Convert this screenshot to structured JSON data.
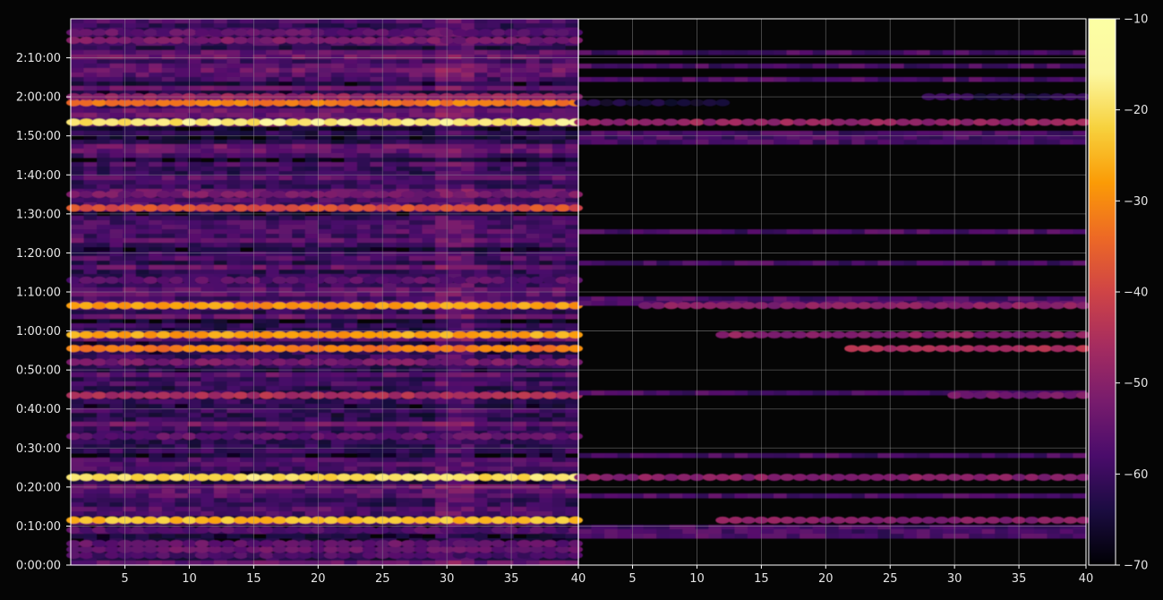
{
  "chart_data": {
    "type": "heatmap",
    "title": "",
    "xlabel": "",
    "ylabel": "",
    "grid": true,
    "colormap": "inferno",
    "background": "#050505",
    "panels": [
      {
        "name": "",
        "xlim": [
          1,
          40
        ],
        "x_ticks": [
          5,
          10,
          15,
          20,
          25,
          30,
          35,
          40
        ],
        "strong_rows": [
          {
            "time": "0:02:30",
            "value": -58,
            "x_from": 1,
            "x_to": 40
          },
          {
            "time": "0:04:00",
            "value": -54,
            "x_from": 1,
            "x_to": 40
          },
          {
            "time": "0:05:30",
            "value": -55,
            "x_from": 1,
            "x_to": 40
          },
          {
            "time": "0:09:00",
            "value": -57,
            "x_from": 1,
            "x_to": 40
          },
          {
            "time": "0:11:30",
            "value": -24,
            "x_from": 1,
            "x_to": 40
          },
          {
            "time": "0:22:30",
            "value": -20,
            "x_from": 1,
            "x_to": 40
          },
          {
            "time": "0:33:00",
            "value": -55,
            "x_from": 1,
            "x_to": 40
          },
          {
            "time": "0:43:30",
            "value": -45,
            "x_from": 1,
            "x_to": 40
          },
          {
            "time": "0:52:00",
            "value": -52,
            "x_from": 1,
            "x_to": 40
          },
          {
            "time": "0:55:30",
            "value": -32,
            "x_from": 1,
            "x_to": 40
          },
          {
            "time": "0:59:00",
            "value": -27,
            "x_from": 1,
            "x_to": 40
          },
          {
            "time": "1:06:30",
            "value": -28,
            "x_from": 1,
            "x_to": 40
          },
          {
            "time": "1:13:00",
            "value": -56,
            "x_from": 1,
            "x_to": 40
          },
          {
            "time": "1:31:30",
            "value": -38,
            "x_from": 1,
            "x_to": 40
          },
          {
            "time": "1:35:00",
            "value": -52,
            "x_from": 1,
            "x_to": 40
          },
          {
            "time": "1:53:30",
            "value": -18,
            "x_from": 1,
            "x_to": 40
          },
          {
            "time": "1:58:30",
            "value": -32,
            "x_from": 1,
            "x_to": 40
          },
          {
            "time": "2:00:00",
            "value": -48,
            "x_from": 1,
            "x_to": 40
          },
          {
            "time": "2:14:30",
            "value": -52,
            "x_from": 1,
            "x_to": 40
          },
          {
            "time": "2:16:30",
            "value": -55,
            "x_from": 1,
            "x_to": 40
          }
        ]
      },
      {
        "name": "",
        "xlim": [
          1,
          40
        ],
        "x_ticks": [
          5,
          10,
          15,
          20,
          25,
          30,
          35,
          40
        ],
        "strong_rows": [
          {
            "time": "0:11:30",
            "value": -50,
            "x_from": 12,
            "x_to": 40
          },
          {
            "time": "0:22:30",
            "value": -50,
            "x_from": 1,
            "x_to": 40
          },
          {
            "time": "0:43:30",
            "value": -52,
            "x_from": 30,
            "x_to": 40
          },
          {
            "time": "0:55:30",
            "value": -45,
            "x_from": 22,
            "x_to": 40
          },
          {
            "time": "0:59:00",
            "value": -50,
            "x_from": 12,
            "x_to": 40
          },
          {
            "time": "1:06:30",
            "value": -50,
            "x_from": 6,
            "x_to": 40
          },
          {
            "time": "1:53:30",
            "value": -48,
            "x_from": 1,
            "x_to": 40
          },
          {
            "time": "1:58:30",
            "value": -64,
            "x_from": 1,
            "x_to": 12
          },
          {
            "time": "2:00:00",
            "value": -62,
            "x_from": 28,
            "x_to": 40
          }
        ]
      }
    ],
    "y_axis": {
      "range": [
        "0:00:00",
        "2:20:00"
      ],
      "ticks": [
        "0:00:00",
        "0:10:00",
        "0:20:00",
        "0:30:00",
        "0:40:00",
        "0:50:00",
        "1:00:00",
        "1:10:00",
        "1:20:00",
        "1:30:00",
        "1:40:00",
        "1:50:00",
        "2:00:00",
        "2:10:00"
      ]
    },
    "colorbar": {
      "range": [
        -70,
        -10
      ],
      "ticks": [
        "−70",
        "−60",
        "−50",
        "−40",
        "−30",
        "−20",
        "−10"
      ]
    }
  }
}
